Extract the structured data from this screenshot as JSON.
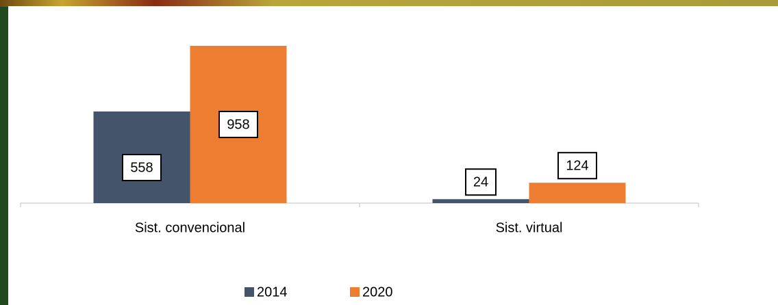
{
  "chart_data": {
    "type": "bar",
    "categories": [
      "Sist. convencional",
      "Sist. virtual"
    ],
    "series": [
      {
        "name": "2014",
        "color": "#44546a",
        "values": [
          558,
          24
        ]
      },
      {
        "name": "2020",
        "color": "#ed7d31",
        "values": [
          958,
          124
        ]
      }
    ],
    "legend": "bottom",
    "data_labels": true
  }
}
